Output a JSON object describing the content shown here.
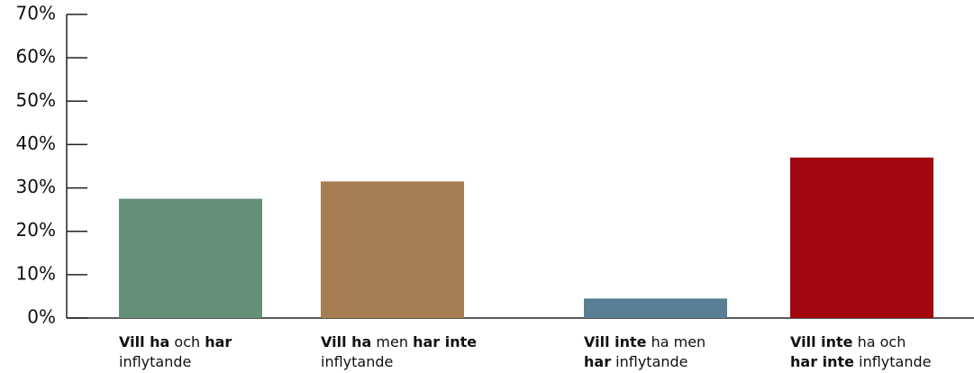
{
  "chart_data": {
    "type": "bar",
    "categories": [
      [
        [
          {
            "text": "Vill ha",
            "bold": true
          },
          {
            "text": " och ",
            "bold": false
          },
          {
            "text": "har",
            "bold": true
          }
        ],
        [
          {
            "text": "inflytande",
            "bold": false
          }
        ]
      ],
      [
        [
          {
            "text": "Vill ha",
            "bold": true
          },
          {
            "text": " men ",
            "bold": false
          },
          {
            "text": "har inte",
            "bold": true
          }
        ],
        [
          {
            "text": "inflytande",
            "bold": false
          }
        ]
      ],
      [
        [
          {
            "text": "Vill inte",
            "bold": true
          },
          {
            "text": " ha men",
            "bold": false
          }
        ],
        [
          {
            "text": "har",
            "bold": true
          },
          {
            "text": " inflytande",
            "bold": false
          }
        ]
      ],
      [
        [
          {
            "text": "Vill inte",
            "bold": true
          },
          {
            "text": " ha och",
            "bold": false
          }
        ],
        [
          {
            "text": "har inte",
            "bold": true
          },
          {
            "text": " inflytande",
            "bold": false
          }
        ]
      ]
    ],
    "values": [
      27.5,
      31.5,
      4.5,
      37
    ],
    "colors": [
      "#668f78",
      "#a67c52",
      "#587f94",
      "#a10810"
    ],
    "ylim": [
      0,
      70
    ],
    "yticks": [
      {
        "value": 0,
        "label": "0%"
      },
      {
        "value": 10,
        "label": "10%"
      },
      {
        "value": 20,
        "label": "20%"
      },
      {
        "value": 30,
        "label": "30%"
      },
      {
        "value": 40,
        "label": "40%"
      },
      {
        "value": 50,
        "label": "50%"
      },
      {
        "value": 60,
        "label": "60%"
      },
      {
        "value": 70,
        "label": "70%"
      }
    ],
    "grid": false
  }
}
